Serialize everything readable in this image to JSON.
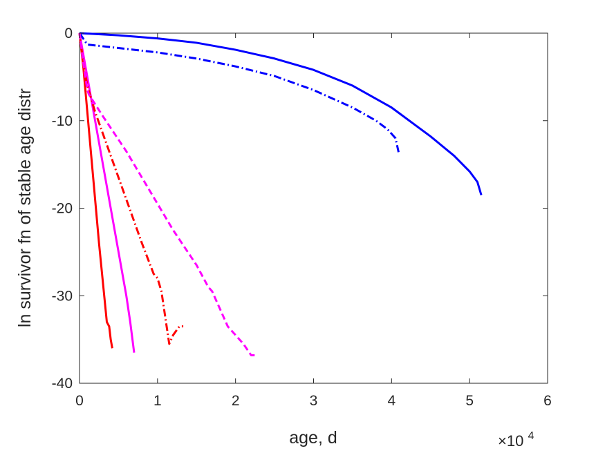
{
  "chart_data": {
    "type": "line",
    "title": "",
    "xlabel": "age, d",
    "ylabel": "ln survivor fn of stable age distr",
    "x_exponent_label": {
      "base": "×10",
      "exp": "4"
    },
    "xlim": [
      0,
      60000
    ],
    "ylim": [
      -40,
      0
    ],
    "xticks": [
      0,
      10000,
      20000,
      30000,
      40000,
      50000,
      60000
    ],
    "xtick_labels": [
      "0",
      "1",
      "2",
      "3",
      "4",
      "5",
      "6"
    ],
    "yticks": [
      0,
      -10,
      -20,
      -30,
      -40
    ],
    "ytick_labels": [
      "0",
      "-10",
      "-20",
      "-30",
      "-40"
    ],
    "grid": false,
    "legend": null,
    "series": [
      {
        "color": "#0000ff",
        "dash": "solid",
        "x": [
          0,
          5000,
          10000,
          15000,
          20000,
          25000,
          30000,
          35000,
          40000,
          45000,
          48000,
          50000,
          51000,
          51500
        ],
        "y": [
          0,
          -0.25,
          -0.6,
          -1.1,
          -1.9,
          -2.9,
          -4.2,
          -6.0,
          -8.5,
          -11.8,
          -14.0,
          -15.8,
          -17.0,
          -18.5
        ]
      },
      {
        "color": "#0000ff",
        "dash": "dashdot",
        "x": [
          0,
          1000,
          5000,
          10000,
          15000,
          20000,
          25000,
          30000,
          35000,
          38000,
          39500,
          40500,
          40900
        ],
        "y": [
          0,
          -1.3,
          -1.7,
          -2.2,
          -2.9,
          -3.8,
          -4.9,
          -6.5,
          -8.5,
          -10.0,
          -11.0,
          -12.0,
          -13.6
        ]
      },
      {
        "color": "#ff0000",
        "dash": "solid",
        "x": [
          0,
          500,
          1000,
          1500,
          2000,
          2500,
          3000,
          3500,
          3800,
          4000,
          4200
        ],
        "y": [
          0,
          -4,
          -9,
          -14,
          -19,
          -24,
          -28.5,
          -33,
          -33.5,
          -35,
          -36
        ]
      },
      {
        "color": "#ff00ff",
        "dash": "solid",
        "x": [
          0,
          500,
          1000,
          2000,
          3000,
          4000,
          5000,
          6000,
          6500,
          7000
        ],
        "y": [
          0,
          -2.5,
          -5,
          -10,
          -15,
          -20,
          -25,
          -30,
          -33,
          -36.5
        ]
      },
      {
        "color": "#ff0000",
        "dash": "dashdot",
        "x": [
          0,
          500,
          1000,
          2000,
          4000,
          6000,
          8000,
          9500,
          10000,
          10500,
          11000,
          11500,
          12000,
          12800,
          13300
        ],
        "y": [
          0,
          -3.5,
          -6,
          -9,
          -14,
          -19,
          -24,
          -27.5,
          -28,
          -29.5,
          -32.5,
          -35.5,
          -34.5,
          -33.5,
          -33.5
        ]
      },
      {
        "color": "#ff00ff",
        "dash": "dashed",
        "x": [
          0,
          500,
          1000,
          1200,
          3000,
          6000,
          9000,
          12000,
          15000,
          16500,
          17000,
          18000,
          19000,
          20000,
          21000,
          22000,
          22500
        ],
        "y": [
          0,
          -3.5,
          -6.5,
          -7,
          -9.5,
          -13.5,
          -18,
          -22.5,
          -26.5,
          -29,
          -29.5,
          -31.5,
          -33.5,
          -34.5,
          -35.5,
          -36.8,
          -36.8
        ]
      }
    ]
  }
}
